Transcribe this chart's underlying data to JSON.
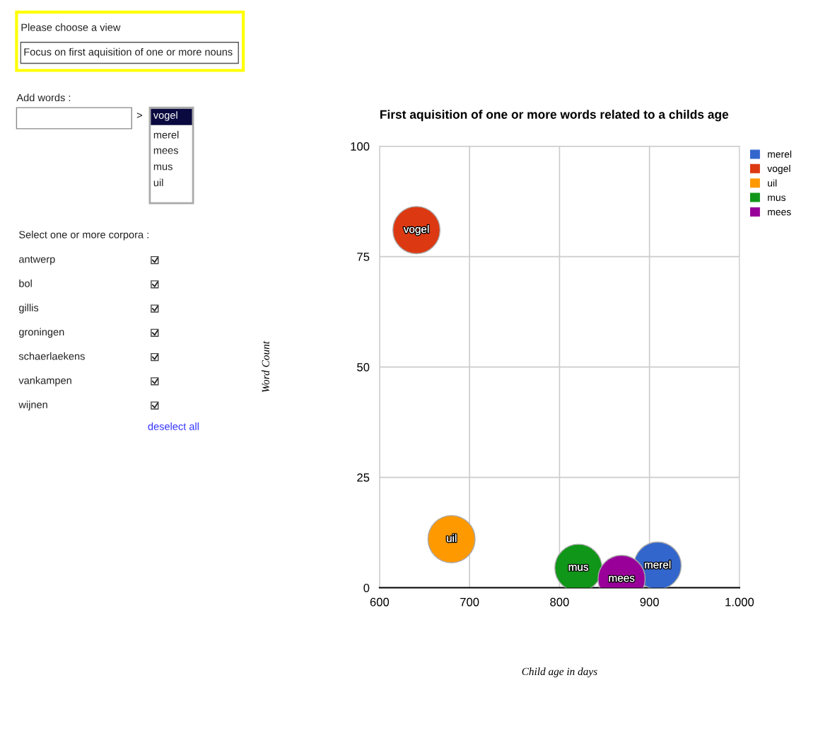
{
  "chart_data": [
    {
      "type": "other",
      "annotations": [
        "Please choose a view",
        "Focus on first aquisition of one or more nouns",
        "Add words :",
        ">",
        "vogel",
        "merel",
        "mees",
        "mus",
        "uil",
        "Select one or more corpora :",
        "antwerp",
        "bol",
        "gillis",
        "groningen",
        "schaerlaekens",
        "vankampen",
        "wijnen",
        "deselect all"
      ]
    },
    {
      "type": "bubble",
      "title": "First aquisition of one or more words related to a childs age",
      "xlabel": "Child age in days",
      "ylabel": "Word Count",
      "xlim": [
        600,
        1000
      ],
      "xticks": [
        600,
        700,
        800,
        900,
        {
          "value": 1000,
          "label": "1.000"
        }
      ],
      "ylim": [
        0,
        100
      ],
      "yticks": [
        0,
        25,
        50,
        75,
        100
      ],
      "grid": true,
      "legend": "right",
      "series": [
        {
          "name": "merel",
          "color": "#3366cc",
          "x": [
            909
          ],
          "values": [
            5
          ],
          "sizes": [
            1
          ]
        },
        {
          "name": "vogel",
          "color": "#dc3912",
          "x": [
            641
          ],
          "values": [
            81
          ],
          "sizes": [
            1
          ]
        },
        {
          "name": "uil",
          "color": "#ff9900",
          "x": [
            680
          ],
          "values": [
            11
          ],
          "sizes": [
            1
          ]
        },
        {
          "name": "mus",
          "color": "#109618",
          "x": [
            821
          ],
          "values": [
            4.5
          ],
          "sizes": [
            1
          ]
        },
        {
          "name": "mees",
          "color": "#990099",
          "x": [
            869
          ],
          "values": [
            2
          ],
          "sizes": [
            1
          ]
        }
      ]
    }
  ]
}
